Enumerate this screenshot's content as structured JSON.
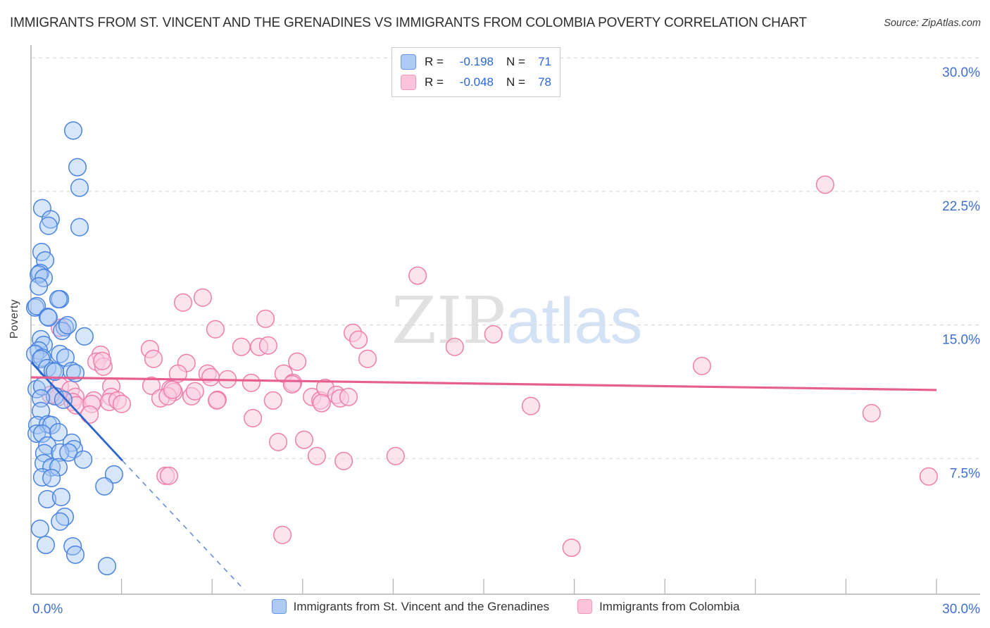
{
  "header": {
    "title": "IMMIGRANTS FROM ST. VINCENT AND THE GRENADINES VS IMMIGRANTS FROM COLOMBIA POVERTY CORRELATION CHART",
    "source": "Source: ZipAtlas.com"
  },
  "legend_box": {
    "rows": [
      {
        "series": "stvincent",
        "r_label": "R =",
        "r_value": "-0.198",
        "n_label": "N =",
        "n_value": "71"
      },
      {
        "series": "colombia",
        "r_label": "R =",
        "r_value": "-0.048",
        "n_label": "N =",
        "n_value": "78"
      }
    ]
  },
  "bottom_legend": {
    "items": [
      {
        "label": "Immigrants from St. Vincent and the Grenadines",
        "series": "stvincent"
      },
      {
        "label": "Immigrants from Colombia",
        "series": "colombia"
      }
    ]
  },
  "watermark": {
    "part1": "ZIP",
    "part2": "atlas"
  },
  "colors": {
    "accent_label": "#3e6fd1",
    "grid": "#d8dbdc",
    "axis": "#aeb1b4",
    "stvincent_fill": "#a9c8f3",
    "stvincent_stroke": "#4a84e0",
    "stvincent_line": "#2c66cc",
    "stvincent_line_dashed": "#6a8fd8",
    "colombia_fill": "#f9cede",
    "colombia_stroke": "#ef7fa9",
    "colombia_line": "#e65f8e",
    "watermark_serif": "#dcdcdc",
    "watermark_sans": "#cdddf5"
  },
  "chart_data": {
    "type": "scatter",
    "title": "Immigrants from St. Vincent and the Grenadines vs Immigrants from Colombia Poverty Correlation",
    "xlabel": "",
    "ylabel": "Poverty",
    "xlim": [
      0,
      30
    ],
    "ylim": [
      0,
      30
    ],
    "x_tick_step": 3,
    "x_tick_labels": [
      {
        "value": 0,
        "label": "0.0%"
      },
      {
        "value": 30,
        "label": "30.0%"
      }
    ],
    "y_ticks": [
      {
        "value": 30,
        "label": "30.0%"
      },
      {
        "value": 22.5,
        "label": "22.5%"
      },
      {
        "value": 15,
        "label": "15.0%"
      },
      {
        "value": 7.5,
        "label": "7.5%"
      }
    ],
    "grid": "horizontal-dashed",
    "legend_position": "bottom",
    "series": [
      {
        "name": "Immigrants from St. Vincent and the Grenadines",
        "r": -0.198,
        "n": 71,
        "points": [
          [
            1.4,
            25.92
          ],
          [
            1.54,
            23.86
          ],
          [
            1.61,
            22.71
          ],
          [
            0.37,
            21.56
          ],
          [
            0.65,
            20.93
          ],
          [
            0.58,
            20.57
          ],
          [
            1.61,
            20.49
          ],
          [
            0.35,
            19.1
          ],
          [
            0.47,
            18.63
          ],
          [
            0.3,
            17.92
          ],
          [
            0.26,
            17.84
          ],
          [
            0.42,
            17.64
          ],
          [
            0.26,
            17.17
          ],
          [
            0.96,
            16.45
          ],
          [
            0.91,
            16.45
          ],
          [
            0.14,
            15.98
          ],
          [
            0.19,
            16.06
          ],
          [
            0.56,
            15.46
          ],
          [
            0.58,
            15.42
          ],
          [
            1.12,
            14.87
          ],
          [
            1.03,
            14.67
          ],
          [
            1.21,
            14.99
          ],
          [
            1.77,
            14.36
          ],
          [
            0.33,
            14.2
          ],
          [
            0.42,
            13.88
          ],
          [
            0.26,
            13.57
          ],
          [
            0.14,
            13.37
          ],
          [
            0.37,
            13.17
          ],
          [
            0.96,
            13.37
          ],
          [
            1.14,
            13.17
          ],
          [
            0.33,
            13.09
          ],
          [
            0.54,
            12.58
          ],
          [
            0.72,
            12.42
          ],
          [
            0.79,
            12.38
          ],
          [
            1.35,
            12.42
          ],
          [
            1.47,
            12.3
          ],
          [
            0.19,
            11.4
          ],
          [
            0.37,
            11.55
          ],
          [
            0.79,
            11.0
          ],
          [
            1.07,
            10.8
          ],
          [
            0.33,
            10.88
          ],
          [
            0.33,
            10.17
          ],
          [
            0.21,
            9.38
          ],
          [
            0.56,
            9.42
          ],
          [
            0.68,
            9.38
          ],
          [
            0.19,
            8.9
          ],
          [
            0.37,
            8.9
          ],
          [
            0.91,
            8.98
          ],
          [
            0.54,
            8.23
          ],
          [
            1.35,
            8.39
          ],
          [
            1.42,
            8.03
          ],
          [
            0.44,
            7.8
          ],
          [
            0.96,
            7.84
          ],
          [
            1.24,
            7.84
          ],
          [
            0.42,
            7.24
          ],
          [
            0.68,
            7.01
          ],
          [
            0.91,
            7.01
          ],
          [
            1.73,
            7.44
          ],
          [
            0.37,
            6.45
          ],
          [
            0.68,
            6.41
          ],
          [
            2.75,
            6.61
          ],
          [
            2.43,
            5.94
          ],
          [
            0.54,
            5.22
          ],
          [
            1.0,
            5.34
          ],
          [
            1.12,
            4.23
          ],
          [
            0.96,
            3.96
          ],
          [
            0.3,
            3.56
          ],
          [
            0.49,
            2.65
          ],
          [
            1.38,
            2.57
          ],
          [
            1.47,
            2.1
          ],
          [
            2.52,
            1.46
          ]
        ]
      },
      {
        "name": "Immigrants from Colombia",
        "r": -0.048,
        "n": 78,
        "points": [
          [
            26.31,
            22.88
          ],
          [
            12.81,
            17.77
          ],
          [
            5.04,
            16.26
          ],
          [
            5.69,
            16.54
          ],
          [
            6.11,
            14.76
          ],
          [
            7.77,
            15.35
          ],
          [
            6.97,
            13.77
          ],
          [
            7.56,
            13.77
          ],
          [
            7.86,
            13.85
          ],
          [
            10.66,
            14.56
          ],
          [
            10.85,
            14.17
          ],
          [
            15.32,
            14.48
          ],
          [
            14.04,
            13.77
          ],
          [
            11.15,
            13.1
          ],
          [
            8.82,
            12.94
          ],
          [
            8.37,
            12.27
          ],
          [
            8.68,
            11.75
          ],
          [
            3.94,
            13.65
          ],
          [
            4.06,
            13.1
          ],
          [
            5.15,
            12.86
          ],
          [
            4.87,
            12.27
          ],
          [
            5.85,
            12.27
          ],
          [
            5.95,
            12.07
          ],
          [
            6.51,
            11.95
          ],
          [
            7.3,
            11.75
          ],
          [
            3.99,
            11.59
          ],
          [
            4.62,
            11.4
          ],
          [
            4.73,
            11.24
          ],
          [
            4.29,
            10.88
          ],
          [
            5.32,
            11.0
          ],
          [
            6.18,
            10.8
          ],
          [
            8.02,
            10.76
          ],
          [
            9.31,
            10.96
          ],
          [
            9.59,
            10.76
          ],
          [
            9.75,
            11.47
          ],
          [
            10.12,
            11.08
          ],
          [
            7.35,
            9.77
          ],
          [
            22.23,
            12.7
          ],
          [
            16.56,
            10.45
          ],
          [
            27.85,
            10.05
          ],
          [
            17.91,
            2.49
          ],
          [
            8.33,
            3.21
          ],
          [
            29.74,
            6.49
          ],
          [
            0.96,
            14.84
          ],
          [
            2.31,
            13.33
          ],
          [
            2.17,
            12.94
          ],
          [
            2.4,
            12.66
          ],
          [
            2.36,
            12.98
          ],
          [
            0.96,
            11.55
          ],
          [
            1.31,
            11.36
          ],
          [
            2.66,
            11.55
          ],
          [
            0.91,
            10.96
          ],
          [
            1.47,
            10.96
          ],
          [
            2.66,
            10.96
          ],
          [
            2.08,
            10.76
          ],
          [
            0.65,
            11.08
          ],
          [
            1.38,
            10.68
          ],
          [
            1.49,
            10.49
          ],
          [
            2.01,
            10.57
          ],
          [
            1.94,
            9.97
          ],
          [
            2.59,
            10.68
          ],
          [
            2.87,
            10.76
          ],
          [
            3.01,
            10.57
          ],
          [
            4.53,
            11.0
          ],
          [
            4.46,
            6.53
          ],
          [
            4.69,
            11.36
          ],
          [
            5.43,
            11.28
          ],
          [
            6.16,
            10.76
          ],
          [
            8.65,
            11.67
          ],
          [
            9.63,
            10.61
          ],
          [
            10.24,
            10.88
          ],
          [
            10.52,
            10.96
          ],
          [
            8.19,
            8.43
          ],
          [
            9.05,
            8.55
          ],
          [
            9.47,
            7.64
          ],
          [
            10.36,
            7.36
          ],
          [
            12.08,
            7.64
          ],
          [
            4.57,
            6.53
          ]
        ]
      }
    ],
    "trend_lines": [
      {
        "series": "stvincent",
        "style": "solid",
        "from": [
          0.02,
          12.89
        ],
        "to": [
          3.03,
          7.38
        ]
      },
      {
        "series": "stvincent",
        "style": "dashed",
        "from": [
          3.03,
          7.38
        ],
        "to": [
          7.07,
          0.12
        ]
      },
      {
        "series": "colombia",
        "style": "solid",
        "from": [
          0.0,
          12.06
        ],
        "to": [
          30.0,
          11.35
        ]
      }
    ]
  }
}
